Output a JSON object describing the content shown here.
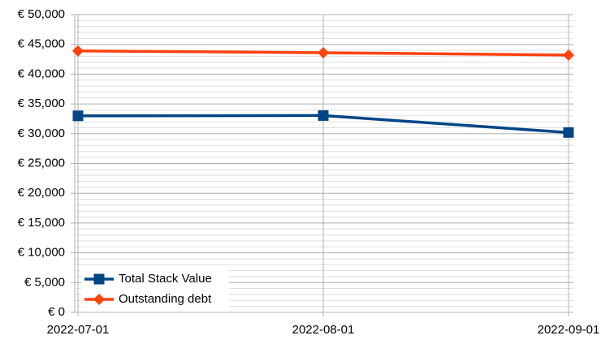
{
  "chart_data": {
    "type": "line",
    "categories": [
      "2022-07-01",
      "2022-08-01",
      "2022-09-01"
    ],
    "series": [
      {
        "name": "Total Stack Value",
        "color": "#004586",
        "marker": "square",
        "values": [
          33000,
          33050,
          30200
        ]
      },
      {
        "name": "Outstanding debt",
        "color": "#ff420e",
        "marker": "diamond",
        "values": [
          43900,
          43600,
          43200
        ]
      }
    ],
    "ylim": [
      0,
      50000
    ],
    "yticks": [
      {
        "value": 0,
        "label": "€ 0"
      },
      {
        "value": 5000,
        "label": "€ 5,000"
      },
      {
        "value": 10000,
        "label": "€ 10,000"
      },
      {
        "value": 15000,
        "label": "€ 15,000"
      },
      {
        "value": 20000,
        "label": "€ 20,000"
      },
      {
        "value": 25000,
        "label": "€ 25,000"
      },
      {
        "value": 30000,
        "label": "€ 30,000"
      },
      {
        "value": 35000,
        "label": "€ 35,000"
      },
      {
        "value": 40000,
        "label": "€ 40,000"
      },
      {
        "value": 45000,
        "label": "€ 45,000"
      },
      {
        "value": 50000,
        "label": "€ 50,000"
      }
    ],
    "grid": true,
    "minor_grid_interval": 1000,
    "legend": "lower left"
  }
}
